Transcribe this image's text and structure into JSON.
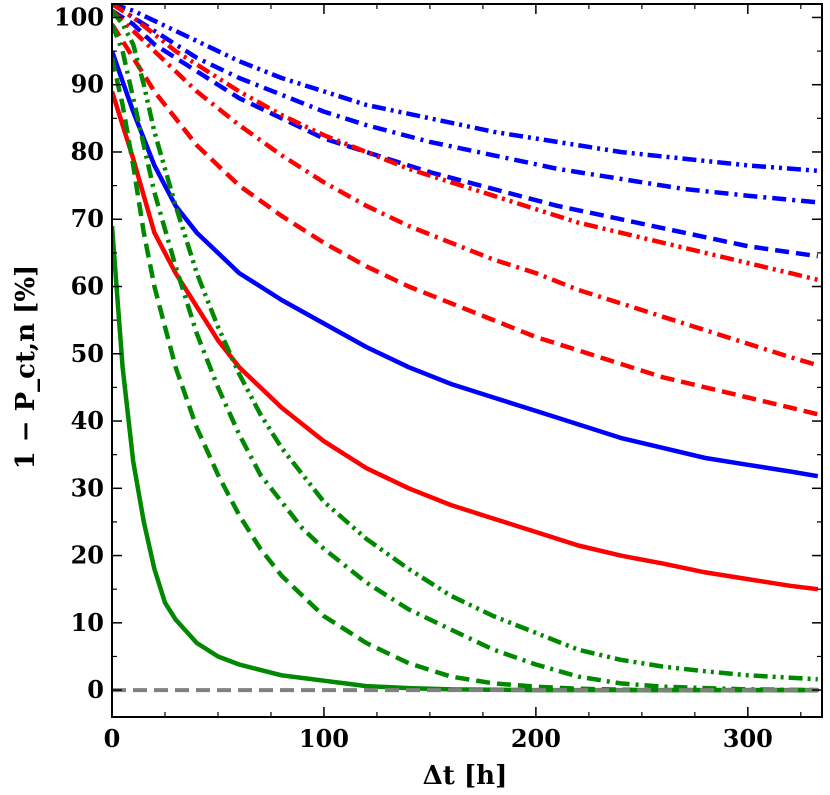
{
  "chart_data": {
    "type": "line",
    "title": "",
    "xlabel": "Δt [h]",
    "ylabel": "1 − P_ct,n [%]",
    "xlim": [
      0,
      335
    ],
    "ylim": [
      -4,
      102
    ],
    "xticks": [
      0,
      100,
      200,
      300
    ],
    "yticks": [
      0,
      10,
      20,
      30,
      40,
      50,
      60,
      70,
      80,
      90,
      100
    ],
    "series": [
      {
        "name": "blue-solid",
        "color": "#0000ff",
        "dash": "solid",
        "x": [
          0,
          10,
          20,
          30,
          40,
          50,
          60,
          70,
          80,
          100,
          120,
          140,
          160,
          180,
          200,
          220,
          240,
          260,
          280,
          300,
          320,
          333
        ],
        "y": [
          95,
          86,
          78,
          72,
          68,
          65,
          62,
          60,
          58,
          54.5,
          51,
          48,
          45.5,
          43.5,
          41.5,
          39.5,
          37.5,
          36,
          34.5,
          33.5,
          32.5,
          31.8
        ]
      },
      {
        "name": "blue-dashed",
        "color": "#0000ff",
        "dash": "dashed",
        "x": [
          0,
          10,
          20,
          30,
          40,
          60,
          80,
          100,
          120,
          150,
          180,
          210,
          240,
          270,
          300,
          333
        ],
        "y": [
          101,
          99,
          96,
          94,
          92,
          88,
          85,
          82,
          80,
          77,
          74.5,
          72,
          70,
          68,
          66,
          64.5
        ]
      },
      {
        "name": "blue-dashdot",
        "color": "#0000ff",
        "dash": "dashdot",
        "x": [
          0,
          10,
          20,
          30,
          40,
          60,
          80,
          100,
          120,
          150,
          180,
          210,
          240,
          270,
          300,
          333
        ],
        "y": [
          102,
          100,
          98,
          96,
          94,
          91,
          88.5,
          86,
          84,
          81.5,
          79.5,
          77.5,
          76,
          74.5,
          73.5,
          72.5
        ]
      },
      {
        "name": "blue-dashdotdot",
        "color": "#0000ff",
        "dash": "dashdotdot",
        "x": [
          0,
          10,
          20,
          30,
          40,
          60,
          80,
          100,
          120,
          150,
          180,
          210,
          240,
          270,
          300,
          333
        ],
        "y": [
          102,
          101,
          99.5,
          98,
          96.5,
          93.5,
          91,
          89,
          87,
          85,
          83,
          81.5,
          80,
          79,
          78,
          77.2
        ]
      },
      {
        "name": "red-solid",
        "color": "#ff0000",
        "dash": "solid",
        "x": [
          0,
          10,
          20,
          30,
          40,
          50,
          60,
          70,
          80,
          100,
          120,
          140,
          160,
          180,
          200,
          220,
          240,
          260,
          280,
          300,
          320,
          333
        ],
        "y": [
          89,
          79,
          68,
          62,
          57,
          52,
          48,
          45,
          42,
          37,
          33,
          30,
          27.5,
          25.5,
          23.5,
          21.5,
          20,
          18.8,
          17.5,
          16.5,
          15.5,
          15
        ]
      },
      {
        "name": "red-dashed",
        "color": "#ff0000",
        "dash": "dashed",
        "x": [
          0,
          10,
          20,
          30,
          40,
          60,
          80,
          100,
          120,
          140,
          160,
          180,
          200,
          220,
          240,
          260,
          280,
          300,
          320,
          333
        ],
        "y": [
          99,
          94,
          89,
          85,
          81,
          75,
          70.5,
          66.5,
          63,
          60,
          57.5,
          55,
          52.5,
          50.5,
          48.5,
          46.5,
          45,
          43.5,
          42,
          41
        ]
      },
      {
        "name": "red-dashdot",
        "color": "#ff0000",
        "dash": "dashdot",
        "x": [
          0,
          10,
          20,
          30,
          40,
          60,
          80,
          100,
          120,
          140,
          160,
          180,
          200,
          220,
          240,
          260,
          280,
          300,
          320,
          333
        ],
        "y": [
          101,
          98,
          95,
          92,
          89,
          84,
          79.5,
          75.5,
          72,
          69,
          66.5,
          64,
          62,
          59.5,
          57.5,
          55.5,
          53.5,
          51.5,
          49.5,
          48.3
        ]
      },
      {
        "name": "red-dashdotdot",
        "color": "#ff0000",
        "dash": "dashdotdot",
        "x": [
          0,
          10,
          20,
          30,
          40,
          60,
          80,
          100,
          120,
          140,
          160,
          180,
          200,
          220,
          240,
          260,
          280,
          300,
          320,
          333
        ],
        "y": [
          102,
          100,
          97.5,
          95,
          93,
          89,
          85.5,
          82.5,
          80,
          77.5,
          75.5,
          73.5,
          71.5,
          69.5,
          68,
          66.5,
          65,
          63.5,
          62,
          61
        ]
      },
      {
        "name": "green-solid",
        "color": "#008800",
        "dash": "solid",
        "x": [
          0,
          5,
          10,
          15,
          20,
          25,
          30,
          40,
          50,
          60,
          70,
          80,
          90,
          100,
          110,
          120,
          140,
          160,
          200,
          250,
          300,
          333
        ],
        "y": [
          69,
          48,
          34,
          25,
          18,
          13,
          10.5,
          7,
          5,
          3.8,
          3,
          2.2,
          1.8,
          1.4,
          1,
          0.6,
          0.3,
          0.1,
          0,
          0,
          0,
          0
        ]
      },
      {
        "name": "green-dashed",
        "color": "#008800",
        "dash": "dashed",
        "x": [
          0,
          5,
          10,
          15,
          20,
          30,
          40,
          50,
          60,
          70,
          80,
          90,
          100,
          120,
          140,
          160,
          180,
          200,
          220,
          250,
          300,
          333
        ],
        "y": [
          94,
          87,
          78,
          68,
          60,
          48,
          39,
          32,
          26,
          21,
          17,
          14,
          11,
          7,
          4,
          2,
          1,
          0.5,
          0.2,
          0,
          0,
          0
        ]
      },
      {
        "name": "green-dashdot",
        "color": "#008800",
        "dash": "dashdot",
        "x": [
          0,
          5,
          10,
          15,
          20,
          30,
          40,
          50,
          60,
          70,
          80,
          90,
          100,
          120,
          140,
          160,
          180,
          200,
          220,
          240,
          260,
          280,
          300,
          333
        ],
        "y": [
          99,
          95,
          88,
          81,
          74,
          63,
          53,
          45,
          38,
          32,
          28,
          24,
          21,
          16,
          12,
          9,
          6,
          3.8,
          2,
          1,
          0.5,
          0.3,
          0.1,
          0
        ]
      },
      {
        "name": "green-dashdotdot",
        "color": "#008800",
        "dash": "dashdotdot",
        "x": [
          0,
          5,
          10,
          15,
          20,
          30,
          40,
          50,
          60,
          70,
          80,
          90,
          100,
          120,
          140,
          160,
          180,
          200,
          220,
          240,
          260,
          280,
          300,
          333
        ],
        "y": [
          101,
          99,
          96,
          90,
          83,
          72,
          62,
          54,
          47,
          41,
          36,
          32,
          28,
          22.5,
          18,
          14,
          11,
          8.5,
          6,
          4.5,
          3.5,
          2.8,
          2.2,
          1.6
        ]
      },
      {
        "name": "zero-reference",
        "color": "#808080",
        "dash": "dashed",
        "x": [
          0,
          335
        ],
        "y": [
          0,
          0
        ]
      }
    ]
  }
}
